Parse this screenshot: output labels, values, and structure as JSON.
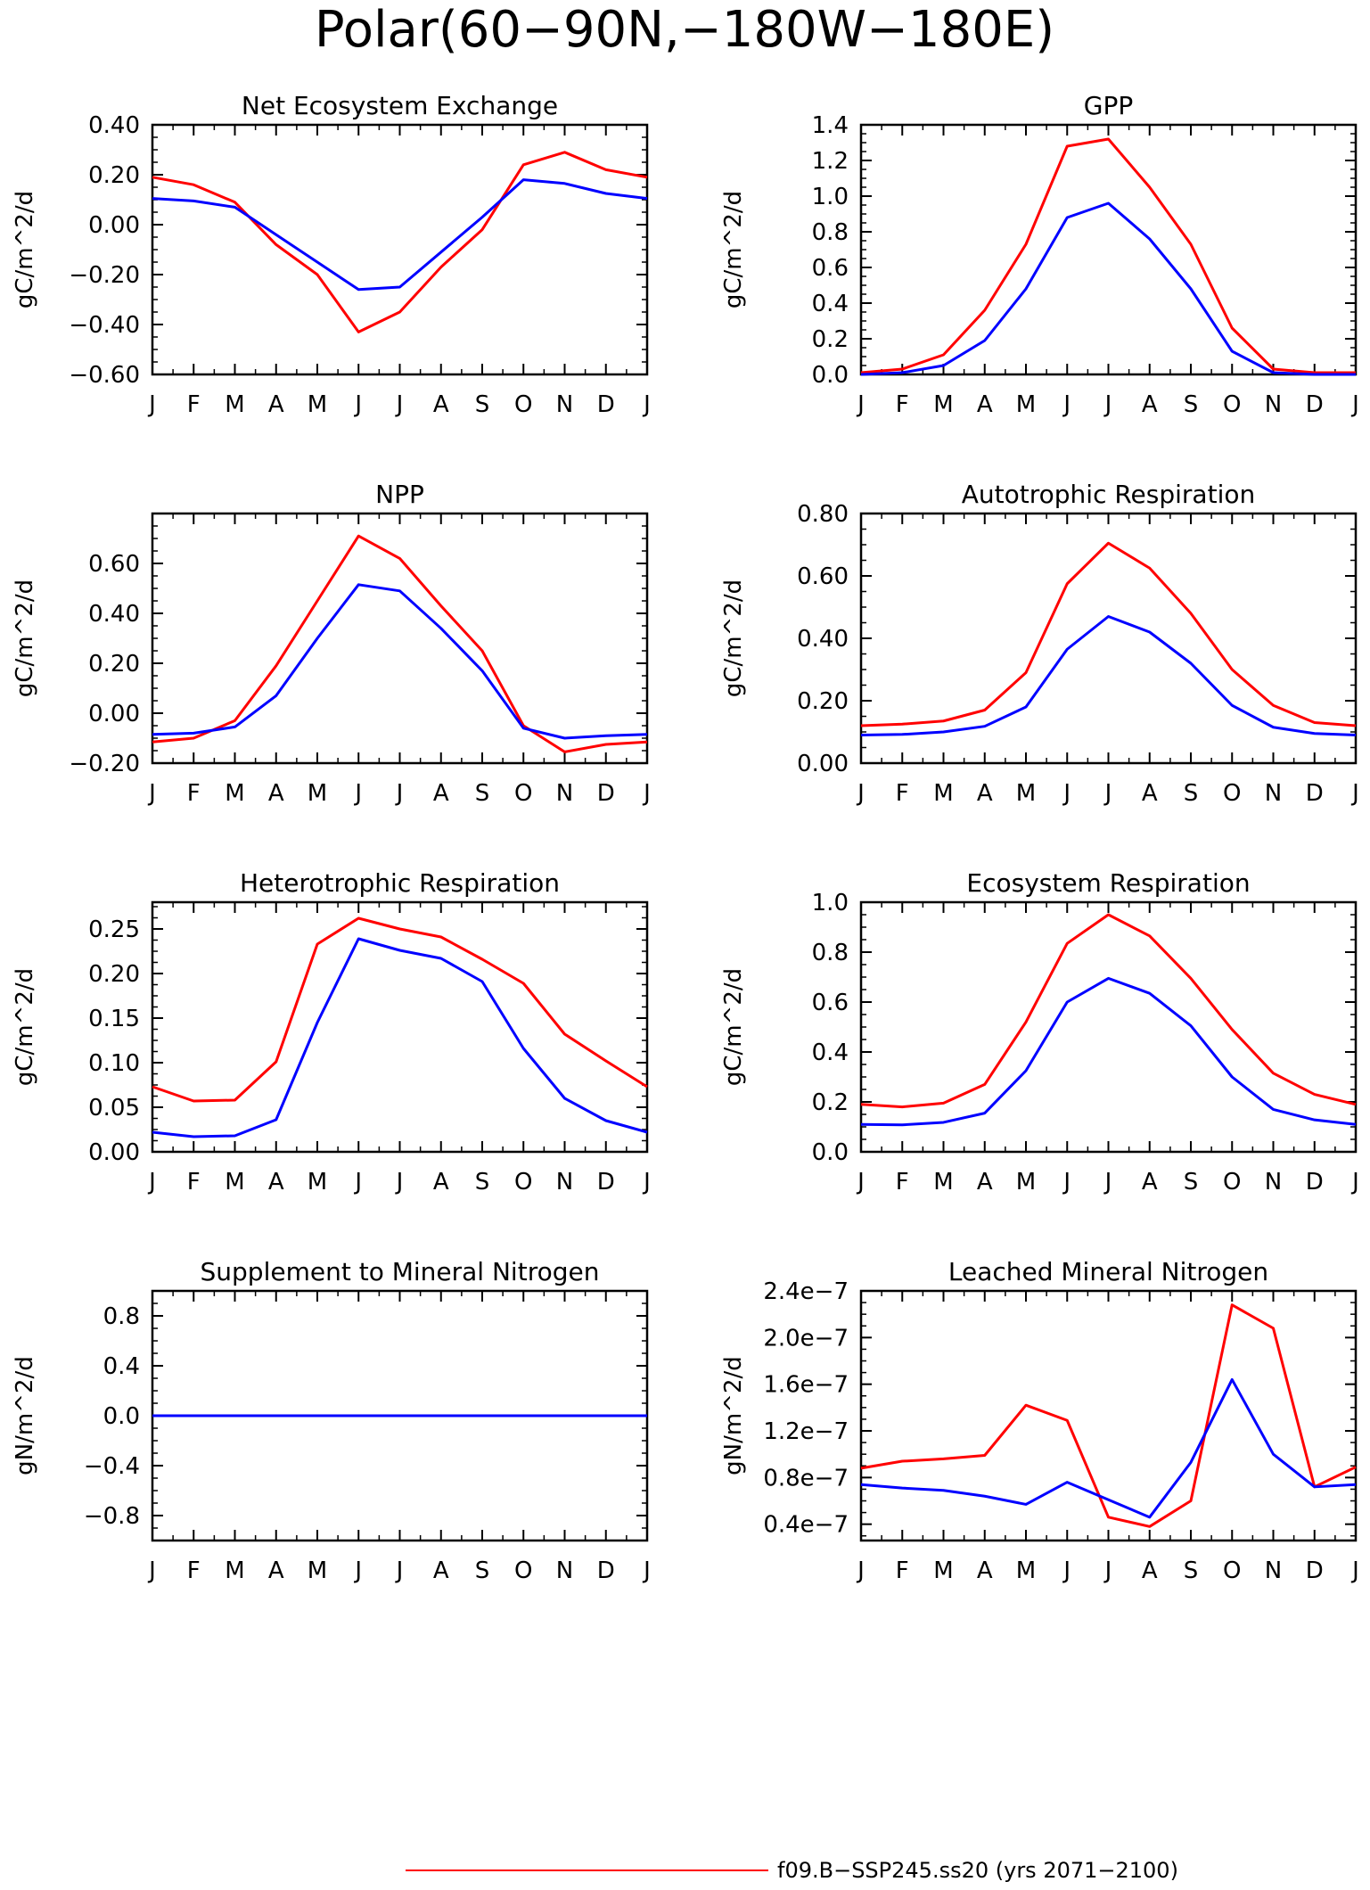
{
  "figure": {
    "title": "Polar(60−90N,−180W−180E)",
    "legend": [
      {
        "label": "f09.B−SSP245.ss20 (yrs 2071−2100)",
        "color": "#ff0000"
      }
    ]
  },
  "colors": {
    "series_a": "#ff0000",
    "series_b": "#0000ff"
  },
  "chart_data": [
    {
      "type": "line",
      "title": "Net Ecosystem Exchange",
      "ylabel": "gC/m^2/d",
      "x": [
        "J",
        "F",
        "M",
        "A",
        "M",
        "J",
        "J",
        "A",
        "S",
        "O",
        "N",
        "D",
        "J"
      ],
      "ylim": [
        -0.6,
        0.4
      ],
      "yticks": [
        -0.6,
        -0.4,
        -0.2,
        0.0,
        0.2,
        0.4
      ],
      "ytick_labels": [
        "−0.60",
        "−0.40",
        "−0.20",
        "0.00",
        "0.20",
        "0.40"
      ],
      "series": [
        {
          "color": "#ff0000",
          "values": [
            0.19,
            0.16,
            0.09,
            -0.08,
            -0.2,
            -0.43,
            -0.35,
            -0.17,
            -0.02,
            0.24,
            0.29,
            0.22,
            0.19
          ]
        },
        {
          "color": "#0000ff",
          "values": [
            0.105,
            0.095,
            0.07,
            -0.04,
            -0.15,
            -0.26,
            -0.25,
            -0.11,
            0.03,
            0.18,
            0.165,
            0.125,
            0.105
          ]
        }
      ]
    },
    {
      "type": "line",
      "title": "GPP",
      "ylabel": "gC/m^2/d",
      "x": [
        "J",
        "F",
        "M",
        "A",
        "M",
        "J",
        "J",
        "A",
        "S",
        "O",
        "N",
        "D",
        "J"
      ],
      "ylim": [
        0.0,
        1.4
      ],
      "yticks": [
        0.0,
        0.2,
        0.4,
        0.6,
        0.8,
        1.0,
        1.2,
        1.4
      ],
      "ytick_labels": [
        "0.0",
        "0.2",
        "0.4",
        "0.6",
        "0.8",
        "1.0",
        "1.2",
        "1.4"
      ],
      "series": [
        {
          "color": "#ff0000",
          "values": [
            0.01,
            0.03,
            0.11,
            0.36,
            0.73,
            1.28,
            1.32,
            1.05,
            0.73,
            0.26,
            0.03,
            0.01,
            0.01
          ]
        },
        {
          "color": "#0000ff",
          "values": [
            0.0,
            0.01,
            0.05,
            0.19,
            0.48,
            0.88,
            0.96,
            0.76,
            0.48,
            0.13,
            0.01,
            0.0,
            0.0
          ]
        }
      ]
    },
    {
      "type": "line",
      "title": "NPP",
      "ylabel": "gC/m^2/d",
      "x": [
        "J",
        "F",
        "M",
        "A",
        "M",
        "J",
        "J",
        "A",
        "S",
        "O",
        "N",
        "D",
        "J"
      ],
      "ylim": [
        -0.2,
        0.8
      ],
      "yticks": [
        -0.2,
        0.0,
        0.2,
        0.4,
        0.6
      ],
      "ytick_labels": [
        "−0.20",
        "0.00",
        "0.20",
        "0.40",
        "0.60"
      ],
      "series": [
        {
          "color": "#ff0000",
          "values": [
            -0.115,
            -0.1,
            -0.03,
            0.19,
            0.45,
            0.71,
            0.62,
            0.43,
            0.25,
            -0.05,
            -0.155,
            -0.125,
            -0.115
          ]
        },
        {
          "color": "#0000ff",
          "values": [
            -0.085,
            -0.08,
            -0.055,
            0.07,
            0.3,
            0.515,
            0.49,
            0.34,
            0.17,
            -0.06,
            -0.1,
            -0.09,
            -0.085
          ]
        }
      ]
    },
    {
      "type": "line",
      "title": "Autotrophic Respiration",
      "ylabel": "gC/m^2/d",
      "x": [
        "J",
        "F",
        "M",
        "A",
        "M",
        "J",
        "J",
        "A",
        "S",
        "O",
        "N",
        "D",
        "J"
      ],
      "ylim": [
        0.0,
        0.8
      ],
      "yticks": [
        0.0,
        0.2,
        0.4,
        0.6,
        0.8
      ],
      "ytick_labels": [
        "0.00",
        "0.20",
        "0.40",
        "0.60",
        "0.80"
      ],
      "series": [
        {
          "color": "#ff0000",
          "values": [
            0.12,
            0.125,
            0.135,
            0.17,
            0.29,
            0.575,
            0.705,
            0.625,
            0.48,
            0.3,
            0.185,
            0.13,
            0.12
          ]
        },
        {
          "color": "#0000ff",
          "values": [
            0.09,
            0.092,
            0.1,
            0.118,
            0.18,
            0.365,
            0.47,
            0.42,
            0.32,
            0.185,
            0.115,
            0.095,
            0.09
          ]
        }
      ]
    },
    {
      "type": "line",
      "title": "Heterotrophic Respiration",
      "ylabel": "gC/m^2/d",
      "x": [
        "J",
        "F",
        "M",
        "A",
        "M",
        "J",
        "J",
        "A",
        "S",
        "O",
        "N",
        "D",
        "J"
      ],
      "ylim": [
        0.0,
        0.28
      ],
      "yticks": [
        0.0,
        0.05,
        0.1,
        0.15,
        0.2,
        0.25
      ],
      "ytick_labels": [
        "0.00",
        "0.05",
        "0.10",
        "0.15",
        "0.20",
        "0.25"
      ],
      "series": [
        {
          "color": "#ff0000",
          "values": [
            0.073,
            0.057,
            0.058,
            0.101,
            0.233,
            0.262,
            0.25,
            0.241,
            0.216,
            0.189,
            0.132,
            0.102,
            0.073
          ]
        },
        {
          "color": "#0000ff",
          "values": [
            0.022,
            0.017,
            0.018,
            0.036,
            0.145,
            0.239,
            0.226,
            0.217,
            0.191,
            0.116,
            0.06,
            0.035,
            0.022
          ]
        }
      ]
    },
    {
      "type": "line",
      "title": "Ecosystem Respiration",
      "ylabel": "gC/m^2/d",
      "x": [
        "J",
        "F",
        "M",
        "A",
        "M",
        "J",
        "J",
        "A",
        "S",
        "O",
        "N",
        "D",
        "J"
      ],
      "ylim": [
        0.0,
        1.0
      ],
      "yticks": [
        0.0,
        0.2,
        0.4,
        0.6,
        0.8,
        1.0
      ],
      "ytick_labels": [
        "0.0",
        "0.2",
        "0.4",
        "0.6",
        "0.8",
        "1.0"
      ],
      "series": [
        {
          "color": "#ff0000",
          "values": [
            0.19,
            0.18,
            0.195,
            0.27,
            0.52,
            0.835,
            0.95,
            0.865,
            0.695,
            0.49,
            0.315,
            0.23,
            0.19
          ]
        },
        {
          "color": "#0000ff",
          "values": [
            0.11,
            0.108,
            0.118,
            0.155,
            0.325,
            0.6,
            0.695,
            0.635,
            0.505,
            0.3,
            0.17,
            0.128,
            0.11
          ]
        }
      ]
    },
    {
      "type": "line",
      "title": "Supplement to Mineral Nitrogen",
      "ylabel": "gN/m^2/d",
      "x": [
        "J",
        "F",
        "M",
        "A",
        "M",
        "J",
        "J",
        "A",
        "S",
        "O",
        "N",
        "D",
        "J"
      ],
      "ylim": [
        -1.0,
        1.0
      ],
      "yticks": [
        -0.8,
        -0.4,
        0.0,
        0.4,
        0.8
      ],
      "ytick_labels": [
        "−0.8",
        "−0.4",
        "0.0",
        "0.4",
        "0.8"
      ],
      "series": [
        {
          "color": "#ff0000",
          "values": [
            0,
            0,
            0,
            0,
            0,
            0,
            0,
            0,
            0,
            0,
            0,
            0,
            0
          ]
        },
        {
          "color": "#0000ff",
          "values": [
            0,
            0,
            0,
            0,
            0,
            0,
            0,
            0,
            0,
            0,
            0,
            0,
            0
          ]
        }
      ]
    },
    {
      "type": "line",
      "title": "Leached Mineral Nitrogen",
      "ylabel": "gN/m^2/d",
      "x": [
        "J",
        "F",
        "M",
        "A",
        "M",
        "J",
        "J",
        "A",
        "S",
        "O",
        "N",
        "D",
        "J"
      ],
      "ylim": [
        2.6e-08,
        2.4e-07
      ],
      "yticks": [
        4e-08,
        8e-08,
        1.2e-07,
        1.6e-07,
        2e-07,
        2.4e-07
      ],
      "ytick_labels": [
        "0.4e−7",
        "0.8e−7",
        "1.2e−7",
        "1.6e−7",
        "2.0e−7",
        "2.4e−7"
      ],
      "series": [
        {
          "color": "#ff0000",
          "values": [
            8.8e-08,
            9.4e-08,
            9.6e-08,
            9.9e-08,
            1.42e-07,
            1.29e-07,
            4.6e-08,
            3.8e-08,
            6e-08,
            2.28e-07,
            2.08e-07,
            7.2e-08,
            8.9e-08
          ]
        },
        {
          "color": "#0000ff",
          "values": [
            7.4e-08,
            7.1e-08,
            6.9e-08,
            6.4e-08,
            5.7e-08,
            7.6e-08,
            6.1e-08,
            4.6e-08,
            9.3e-08,
            1.64e-07,
            1e-07,
            7.2e-08,
            7.4e-08
          ]
        }
      ]
    }
  ]
}
